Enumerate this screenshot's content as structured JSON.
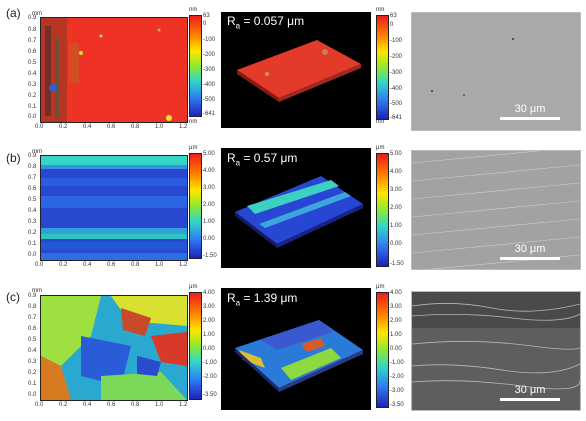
{
  "rows": [
    {
      "label": "(a)",
      "map_unit_top": "mm",
      "map_unit_bottom": "mm",
      "y_ticks": [
        "0.9",
        "0.8",
        "0.7",
        "0.6",
        "0.5",
        "0.4",
        "0.3",
        "0.2",
        "0.1",
        "0.0"
      ],
      "x_ticks": [
        "0.0",
        "0.2",
        "0.4",
        "0.6",
        "0.8",
        "1.0",
        "1.2"
      ],
      "cbar_unit_top": "nm",
      "cbar_unit_bottom": "nm",
      "cbar_ticks": [
        "63",
        "0",
        "-100",
        "-200",
        "-300",
        "-400",
        "-500",
        "-641"
      ],
      "cbar2_unit_top": "nm",
      "cbar2_unit_bottom": "nm",
      "cbar2_ticks": [
        "63",
        "0",
        "-100",
        "-200",
        "-300",
        "-400",
        "-500",
        "-641"
      ],
      "ra_prefix": "R",
      "ra_sub": "a",
      "ra_value": " = 0.057 μm",
      "scale_label": "30 μm"
    },
    {
      "label": "(b)",
      "map_unit_top": "mm",
      "y_ticks": [
        "0.9",
        "0.8",
        "0.7",
        "0.6",
        "0.5",
        "0.4",
        "0.3",
        "0.2",
        "0.1",
        "0.0"
      ],
      "x_ticks": [
        "0.0",
        "0.2",
        "0.4",
        "0.6",
        "0.8",
        "1.0",
        "1.2"
      ],
      "cbar_unit_top": "μm",
      "cbar_ticks": [
        "5.00",
        "4.00",
        "3.00",
        "2.00",
        "1.00",
        "0.00",
        "-1.50"
      ],
      "cbar2_unit_top": "μm",
      "cbar2_ticks": [
        "5.00",
        "4.00",
        "3.00",
        "2.00",
        "1.00",
        "0.00",
        "-1.50"
      ],
      "ra_prefix": "R",
      "ra_sub": "a",
      "ra_value": " = 0.57 μm",
      "scale_label": "30 μm"
    },
    {
      "label": "(c)",
      "map_unit_top": "mm",
      "y_ticks": [
        "0.9",
        "0.8",
        "0.7",
        "0.6",
        "0.5",
        "0.4",
        "0.3",
        "0.2",
        "0.1",
        "0.0"
      ],
      "x_ticks": [
        "0.0",
        "0.2",
        "0.4",
        "0.6",
        "0.8",
        "1.0",
        "1.2"
      ],
      "cbar_unit_top": "μm",
      "cbar_ticks": [
        "4.00",
        "3.00",
        "2.00",
        "1.00",
        "0.00",
        "-1.00",
        "-2.00",
        "-3.50"
      ],
      "cbar2_unit_top": "μm",
      "cbar2_ticks": [
        "4.00",
        "3.00",
        "2.00",
        "1.00",
        "0.00",
        "-1.00",
        "-2.00",
        "-3.00",
        "-3.50"
      ],
      "ra_prefix": "R",
      "ra_sub": "a",
      "ra_value": " = 1.39 μm",
      "scale_label": "30 μm"
    }
  ]
}
